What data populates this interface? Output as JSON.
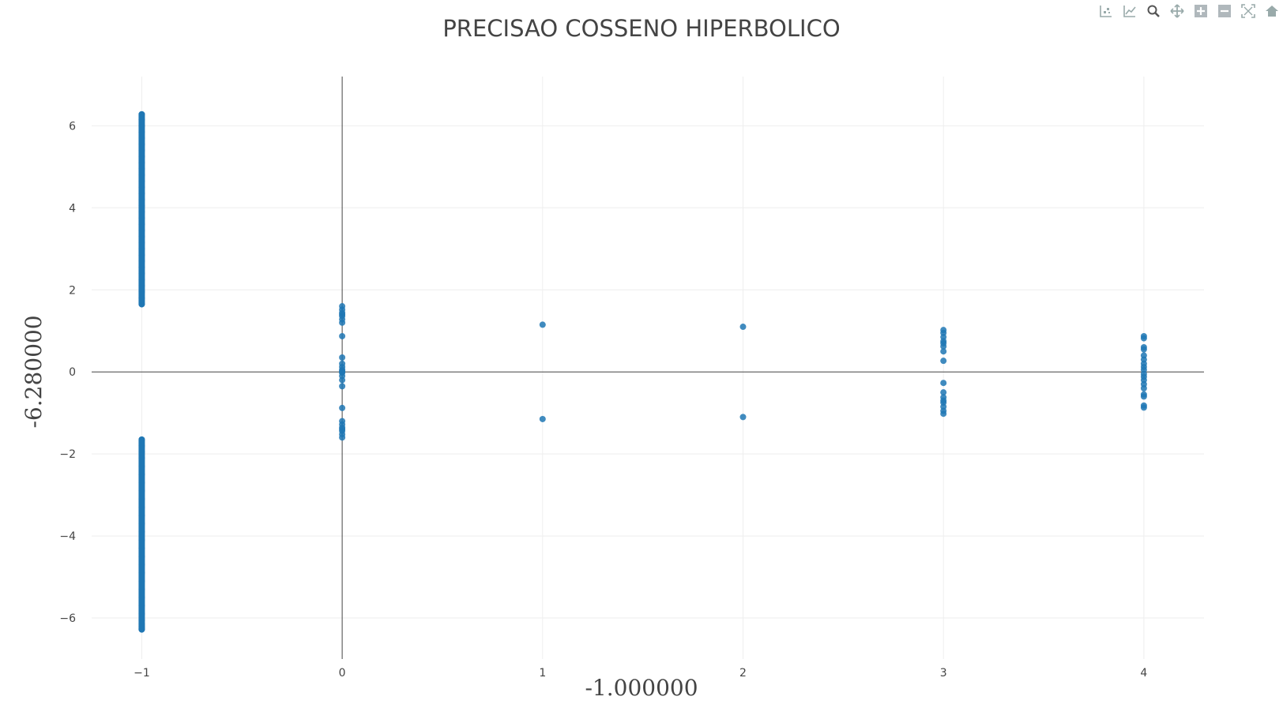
{
  "toolbar": {
    "buttons": [
      {
        "icon": "box-select-icon"
      },
      {
        "icon": "compare-lines-icon"
      },
      {
        "icon": "zoom-icon"
      },
      {
        "icon": "pan-icon"
      },
      {
        "icon": "zoom-in-icon"
      },
      {
        "icon": "zoom-out-icon"
      },
      {
        "icon": "autoscale-icon"
      },
      {
        "icon": "reset-axes-icon"
      }
    ]
  },
  "chart_data": {
    "type": "scatter",
    "title": "PRECISAO COSSENO HIPERBOLICO",
    "xlabel": "-1.000000",
    "ylabel": "-6.280000",
    "xlim": [
      -1.25,
      4.3
    ],
    "ylim": [
      -7.0,
      7.2
    ],
    "x_ticks": [
      -1,
      0,
      1,
      2,
      3,
      4
    ],
    "x_tick_labels": [
      "−1",
      "0",
      "1",
      "2",
      "3",
      "4"
    ],
    "y_ticks": [
      -6,
      -4,
      -2,
      0,
      2,
      4,
      6
    ],
    "y_tick_labels": [
      "−6",
      "−4",
      "−2",
      "0",
      "2",
      "4",
      "6"
    ],
    "grid": true,
    "zero_lines": true,
    "marker_color": "#1f77b4",
    "series": [
      {
        "x": [
          -1,
          -1,
          -1,
          -1,
          -1,
          -1,
          -1,
          -1,
          -1,
          -1,
          -1,
          -1,
          -1,
          -1,
          -1,
          -1,
          -1,
          -1,
          -1,
          -1,
          -1,
          -1,
          -1,
          -1,
          -1,
          -1,
          -1,
          -1,
          -1,
          -1,
          -1,
          -1,
          -1,
          -1,
          -1,
          -1,
          -1,
          -1,
          -1,
          -1,
          -1,
          -1,
          -1,
          -1,
          -1,
          -1,
          -1,
          -1,
          -1,
          -1,
          -1,
          -1,
          -1,
          -1,
          -1,
          -1,
          -1,
          -1,
          -1,
          -1,
          -1,
          -1,
          0,
          0,
          0,
          0,
          0,
          0,
          0,
          0,
          0,
          0,
          0,
          0,
          0,
          0,
          0,
          0,
          0,
          0,
          0,
          0,
          0,
          0,
          0,
          0,
          0,
          0,
          1,
          1,
          2,
          2,
          3,
          3,
          3,
          3,
          3,
          3,
          3,
          3,
          3,
          3,
          3,
          3,
          3,
          3,
          3,
          3,
          4,
          4,
          4,
          4,
          4,
          4,
          4,
          4,
          4,
          4,
          4,
          4,
          4,
          4,
          4,
          4,
          4,
          4
        ],
        "y": [
          1.65,
          1.8,
          1.95,
          2.1,
          2.25,
          2.4,
          2.55,
          2.7,
          2.85,
          3.0,
          3.15,
          3.3,
          3.45,
          3.6,
          3.75,
          3.9,
          4.05,
          4.2,
          4.35,
          4.5,
          4.65,
          4.8,
          4.95,
          5.1,
          5.25,
          5.4,
          5.55,
          5.7,
          5.85,
          6.0,
          6.15,
          6.28,
          -1.65,
          -1.8,
          -1.95,
          -2.1,
          -2.3,
          -2.5,
          -2.7,
          -2.9,
          -3.1,
          -3.3,
          -3.5,
          -3.7,
          -3.9,
          -4.1,
          -4.3,
          -4.5,
          -4.7,
          -4.9,
          -5.1,
          -5.3,
          -5.5,
          -5.7,
          -5.9,
          -6.05,
          -6.15,
          -6.2,
          -6.24,
          -6.26,
          -6.27,
          -6.28,
          1.2,
          1.28,
          1.36,
          1.44,
          1.52,
          1.6,
          0.87,
          0.35,
          0.12,
          0.05,
          -0.02,
          -0.1,
          -0.35,
          -0.88,
          -1.2,
          -1.28,
          -1.36,
          -1.44,
          -1.52,
          -1.6,
          0.2,
          -0.2,
          1.4,
          -1.4,
          0.0,
          0.02,
          1.15,
          -1.15,
          1.1,
          -1.1,
          1.02,
          0.95,
          0.85,
          0.75,
          0.62,
          0.5,
          0.27,
          -0.27,
          -0.5,
          -0.62,
          -0.75,
          -0.85,
          -0.95,
          -1.02,
          0.7,
          -0.7,
          0.87,
          0.82,
          0.6,
          0.55,
          0.4,
          0.3,
          0.2,
          0.12,
          0.05,
          -0.05,
          -0.12,
          -0.2,
          -0.3,
          -0.4,
          -0.55,
          -0.6,
          -0.82,
          -0.87
        ]
      }
    ]
  }
}
